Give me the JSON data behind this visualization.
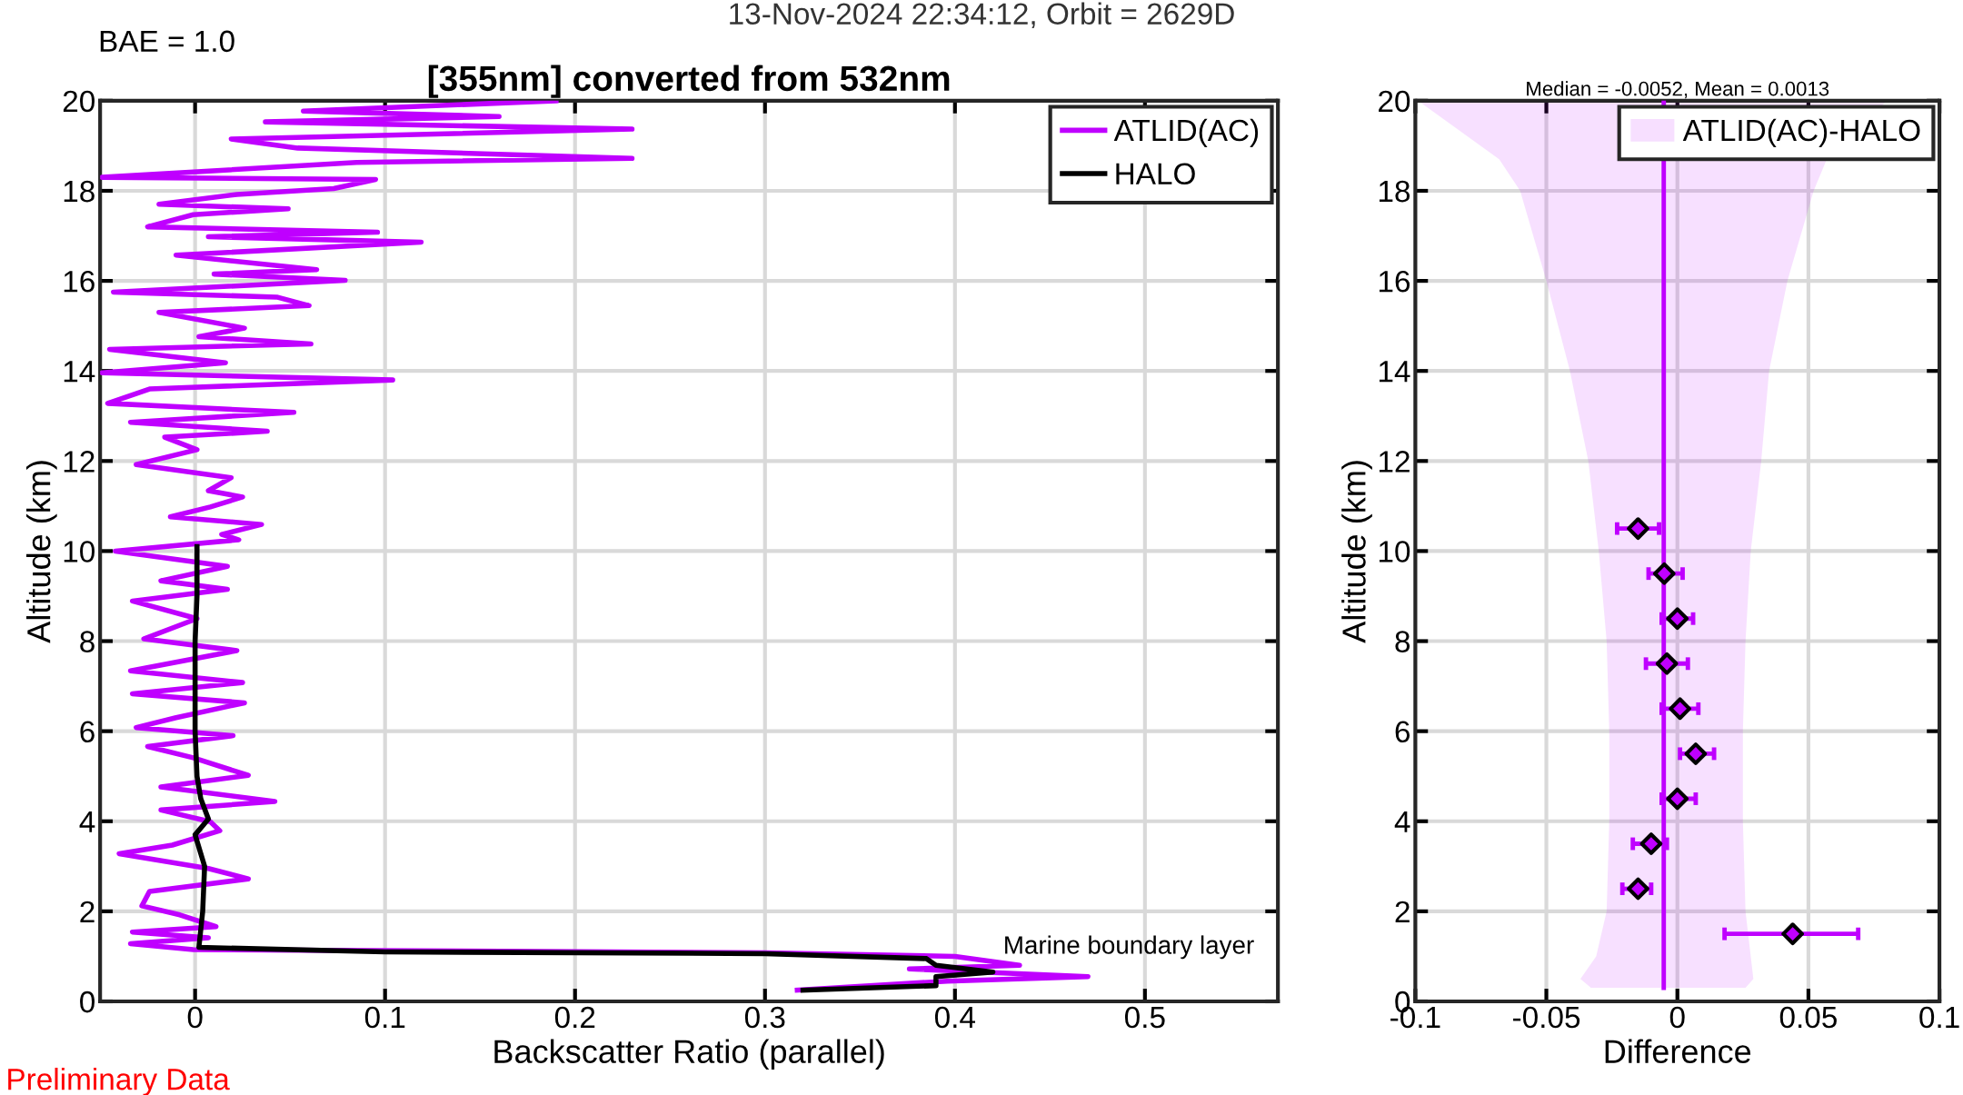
{
  "chart_data": [
    {
      "type": "line",
      "orientation": "horizontal",
      "title": "[355nm] converted from 532nm",
      "xlabel": "Backscatter Ratio (parallel)",
      "ylabel": "Altitude (km)",
      "annotations": [
        "13-Nov-2024 22:34:12, Orbit = 2629D",
        "BAE = 1.0",
        "Marine boundary layer",
        "Preliminary Data"
      ],
      "xlim": [
        -0.05,
        0.57
      ],
      "ylim": [
        0,
        20
      ],
      "xticks": [
        0,
        0.1,
        0.2,
        0.3,
        0.4,
        0.5
      ],
      "yticks": [
        0,
        2,
        4,
        6,
        8,
        10,
        12,
        14,
        16,
        18,
        20
      ],
      "grid": true,
      "legend": "top right",
      "line_style": "solid",
      "series": [
        {
          "name": "ATLID(AC)",
          "color": "#bf00ff",
          "values": [
            0.19,
            0.057,
            0.16,
            0.037,
            0.23,
            0.019,
            0.054,
            0.23,
            0.085,
            -0.049,
            0.095,
            0.073,
            0.022,
            -0.019,
            0.049,
            -0.001,
            -0.025,
            0.096,
            0.007,
            0.119,
            -0.01,
            0.064,
            0.01,
            0.079,
            -0.043,
            0.043,
            0.06,
            -0.019,
            0.026,
            0.002,
            0.061,
            -0.045,
            0.016,
            -0.049,
            0.104,
            -0.024,
            -0.046,
            0.052,
            -0.034,
            0.038,
            -0.016,
            0.001,
            -0.031,
            0.019,
            0.007,
            0.025,
            0.008,
            -0.013,
            0.035,
            0.014,
            0.023,
            -0.042,
            0.017,
            -0.018,
            0.017,
            -0.033,
            0.001,
            -0.027,
            0.022,
            -0.034,
            0.025,
            -0.033,
            0.026,
            -0.01,
            -0.031,
            0.02,
            -0.025,
            -0.001,
            0.028,
            -0.018,
            0.042,
            -0.018,
            0.008,
            0.013,
            -0.012,
            -0.04,
            0.007,
            0.028,
            -0.024,
            -0.028,
            -0.008,
            0.011,
            -0.033,
            0.007,
            -0.034,
            -0.001,
            0.3,
            0.4,
            0.434,
            0.376,
            0.47,
            0.396,
            0.317
          ],
          "x": [
            20.0,
            19.77,
            19.65,
            19.53,
            19.37,
            19.15,
            18.95,
            18.72,
            18.63,
            18.3,
            18.25,
            18.05,
            17.92,
            17.7,
            17.6,
            17.47,
            17.2,
            17.08,
            16.98,
            16.86,
            16.57,
            16.25,
            16.15,
            16.01,
            15.75,
            15.64,
            15.45,
            15.3,
            14.95,
            14.76,
            14.6,
            14.48,
            14.18,
            13.96,
            13.8,
            13.6,
            13.28,
            13.08,
            12.86,
            12.66,
            12.53,
            12.25,
            11.92,
            11.63,
            11.34,
            11.2,
            10.98,
            10.76,
            10.59,
            10.37,
            10.25,
            10.0,
            9.66,
            9.34,
            9.15,
            8.89,
            8.5,
            8.05,
            7.79,
            7.34,
            7.08,
            6.83,
            6.63,
            6.3,
            6.08,
            5.9,
            5.66,
            5.41,
            5.02,
            4.76,
            4.44,
            4.25,
            3.99,
            3.79,
            3.47,
            3.28,
            2.95,
            2.72,
            2.44,
            2.12,
            1.92,
            1.66,
            1.54,
            1.41,
            1.28,
            1.15,
            1.08,
            1.0,
            0.8,
            0.72,
            0.55,
            0.45,
            0.25
          ]
        },
        {
          "name": "HALO",
          "color": "#000000",
          "values": [
            0.001,
            0.001,
            0.0,
            0.0,
            0.001,
            0.003,
            0.007,
            0.0,
            0.005,
            0.004,
            0.002,
            0.1,
            0.3,
            0.385,
            0.39,
            0.42,
            0.39,
            0.39,
            0.32
          ],
          "x": [
            10.1,
            9.0,
            8.0,
            6.0,
            5.0,
            4.5,
            4.05,
            3.7,
            3.0,
            2.0,
            1.2,
            1.1,
            1.06,
            0.95,
            0.8,
            0.65,
            0.55,
            0.35,
            0.25
          ]
        }
      ]
    },
    {
      "type": "scatter",
      "orientation": "horizontal",
      "title": "Median = -0.0052, Mean = 0.0013",
      "xlabel": "Difference",
      "ylabel": "Altitude (km)",
      "xlim": [
        -0.1,
        0.1
      ],
      "ylim": [
        0,
        20
      ],
      "xticks": [
        -0.1,
        -0.05,
        0,
        0.05,
        0.1
      ],
      "yticks": [
        0,
        2,
        4,
        6,
        8,
        10,
        12,
        14,
        16,
        18,
        20
      ],
      "grid": true,
      "legend": "top right",
      "series": [
        {
          "type": "line",
          "name": "ATLID(AC)-HALO",
          "color": "#bf00ff",
          "x": [
            0.3,
            0.5,
            1,
            2,
            4,
            6,
            8,
            10,
            12,
            14,
            16,
            18,
            18.7,
            20
          ],
          "values": [
            -0.0052,
            -0.0052,
            -0.0052,
            -0.0052,
            -0.0052,
            -0.0052,
            -0.0052,
            -0.0052,
            -0.0052,
            -0.0052,
            -0.0052,
            -0.0052,
            -0.0052,
            -0.0052
          ],
          "lower": [
            -0.033,
            -0.037,
            -0.031,
            -0.027,
            -0.026,
            -0.026,
            -0.027,
            -0.03,
            -0.034,
            -0.041,
            -0.05,
            -0.06,
            -0.068,
            -0.099
          ],
          "upper": [
            0.026,
            0.029,
            0.028,
            0.026,
            0.025,
            0.025,
            0.026,
            0.028,
            0.032,
            0.035,
            0.042,
            0.052,
            0.057,
            0.08
          ]
        },
        {
          "type": "scatter",
          "marker": "diamond",
          "color": "#bf00ff",
          "values": [
            -0.015,
            -0.005,
            0.0,
            -0.004,
            0.001,
            0.007,
            0.0,
            -0.01,
            -0.015,
            0.044
          ],
          "x": [
            10.5,
            9.5,
            8.5,
            7.5,
            6.5,
            5.5,
            4.5,
            3.5,
            2.5,
            1.5
          ],
          "errors": [
            [
              -0.023,
              -0.007
            ],
            [
              -0.011,
              0.002
            ],
            [
              -0.006,
              0.006
            ],
            [
              -0.012,
              0.004
            ],
            [
              -0.006,
              0.008
            ],
            [
              0.001,
              0.014
            ],
            [
              -0.006,
              0.007
            ],
            [
              -0.017,
              -0.004
            ],
            [
              -0.021,
              -0.01
            ],
            [
              0.018,
              0.069
            ]
          ]
        }
      ]
    }
  ]
}
